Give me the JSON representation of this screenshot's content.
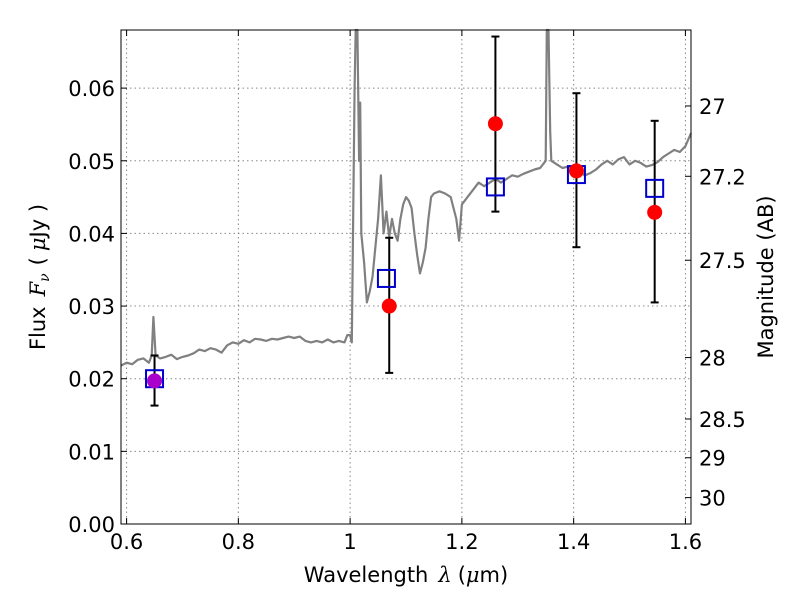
{
  "chart_data": {
    "type": "scatter",
    "title": "",
    "xlabel": "Wavelength",
    "xlabel_symbol": "λ",
    "xlabel_unit_open": "(",
    "xlabel_unit_mu": "μ",
    "xlabel_unit_rest": "m)",
    "ylabel_left": "Flux",
    "ylabel_left_symbol": "F",
    "ylabel_left_sub": "ν",
    "ylabel_left_unit_open": "(",
    "ylabel_left_unit_mu": "μ",
    "ylabel_left_unit_rest": "Jy )",
    "ylabel_right": "Magnitude (AB)",
    "xlim": [
      0.59,
      1.61
    ],
    "ylim": [
      0.0,
      0.068
    ],
    "grid": true,
    "x_ticks": [
      {
        "v": 0.6,
        "label": "0.6"
      },
      {
        "v": 0.8,
        "label": "0.8"
      },
      {
        "v": 1.0,
        "label": "1"
      },
      {
        "v": 1.2,
        "label": "1.2"
      },
      {
        "v": 1.4,
        "label": "1.4"
      },
      {
        "v": 1.6,
        "label": "1.6"
      }
    ],
    "y_ticks": [
      {
        "v": 0.0,
        "label": "0.00"
      },
      {
        "v": 0.01,
        "label": "0.01"
      },
      {
        "v": 0.02,
        "label": "0.02"
      },
      {
        "v": 0.03,
        "label": "0.03"
      },
      {
        "v": 0.04,
        "label": "0.04"
      },
      {
        "v": 0.05,
        "label": "0.05"
      },
      {
        "v": 0.06,
        "label": "0.06"
      }
    ],
    "right_ticks": [
      {
        "mag": 27,
        "label": "27"
      },
      {
        "mag": 27.2,
        "label": "27.2"
      },
      {
        "mag": 27.5,
        "label": "27.5"
      },
      {
        "mag": 28,
        "label": "28"
      },
      {
        "mag": 28.5,
        "label": "28.5"
      },
      {
        "mag": 29,
        "label": "29"
      },
      {
        "mag": 30,
        "label": "30"
      }
    ],
    "spectrum": [
      [
        0.59,
        0.0218
      ],
      [
        0.6,
        0.0222
      ],
      [
        0.61,
        0.022
      ],
      [
        0.62,
        0.0226
      ],
      [
        0.63,
        0.0228
      ],
      [
        0.64,
        0.0222
      ],
      [
        0.645,
        0.0232
      ],
      [
        0.648,
        0.0285
      ],
      [
        0.652,
        0.0232
      ],
      [
        0.66,
        0.0228
      ],
      [
        0.67,
        0.023
      ],
      [
        0.68,
        0.0233
      ],
      [
        0.69,
        0.0227
      ],
      [
        0.7,
        0.023
      ],
      [
        0.71,
        0.0232
      ],
      [
        0.72,
        0.0235
      ],
      [
        0.73,
        0.024
      ],
      [
        0.74,
        0.0238
      ],
      [
        0.75,
        0.0242
      ],
      [
        0.76,
        0.024
      ],
      [
        0.77,
        0.0236
      ],
      [
        0.78,
        0.0246
      ],
      [
        0.79,
        0.025
      ],
      [
        0.8,
        0.0248
      ],
      [
        0.81,
        0.0253
      ],
      [
        0.82,
        0.025
      ],
      [
        0.83,
        0.0255
      ],
      [
        0.84,
        0.0254
      ],
      [
        0.85,
        0.0252
      ],
      [
        0.86,
        0.0255
      ],
      [
        0.87,
        0.0254
      ],
      [
        0.88,
        0.0256
      ],
      [
        0.89,
        0.0258
      ],
      [
        0.9,
        0.0256
      ],
      [
        0.91,
        0.0258
      ],
      [
        0.92,
        0.0252
      ],
      [
        0.93,
        0.025
      ],
      [
        0.94,
        0.0252
      ],
      [
        0.95,
        0.025
      ],
      [
        0.96,
        0.0254
      ],
      [
        0.97,
        0.025
      ],
      [
        0.98,
        0.0252
      ],
      [
        0.99,
        0.025
      ],
      [
        0.995,
        0.026
      ],
      [
        1.0,
        0.026
      ],
      [
        1.003,
        0.025
      ],
      [
        1.008,
        0.06
      ],
      [
        1.01,
        0.07
      ],
      [
        1.013,
        0.07
      ],
      [
        1.016,
        0.05
      ],
      [
        1.018,
        0.058
      ],
      [
        1.02,
        0.04
      ],
      [
        1.025,
        0.036
      ],
      [
        1.03,
        0.0305
      ],
      [
        1.035,
        0.032
      ],
      [
        1.04,
        0.034
      ],
      [
        1.045,
        0.038
      ],
      [
        1.05,
        0.042
      ],
      [
        1.055,
        0.048
      ],
      [
        1.06,
        0.04
      ],
      [
        1.065,
        0.043
      ],
      [
        1.07,
        0.0395
      ],
      [
        1.075,
        0.042
      ],
      [
        1.08,
        0.04
      ],
      [
        1.085,
        0.039
      ],
      [
        1.09,
        0.042
      ],
      [
        1.095,
        0.044
      ],
      [
        1.1,
        0.045
      ],
      [
        1.105,
        0.0445
      ],
      [
        1.11,
        0.0435
      ],
      [
        1.115,
        0.04
      ],
      [
        1.12,
        0.037
      ],
      [
        1.125,
        0.0345
      ],
      [
        1.13,
        0.036
      ],
      [
        1.135,
        0.038
      ],
      [
        1.14,
        0.042
      ],
      [
        1.145,
        0.045
      ],
      [
        1.15,
        0.0455
      ],
      [
        1.16,
        0.0458
      ],
      [
        1.17,
        0.0455
      ],
      [
        1.18,
        0.045
      ],
      [
        1.19,
        0.042
      ],
      [
        1.195,
        0.039
      ],
      [
        1.2,
        0.044
      ],
      [
        1.21,
        0.045
      ],
      [
        1.22,
        0.046
      ],
      [
        1.23,
        0.047
      ],
      [
        1.24,
        0.0465
      ],
      [
        1.25,
        0.047
      ],
      [
        1.26,
        0.0475
      ],
      [
        1.27,
        0.047
      ],
      [
        1.28,
        0.0475
      ],
      [
        1.29,
        0.048
      ],
      [
        1.3,
        0.0478
      ],
      [
        1.31,
        0.0482
      ],
      [
        1.32,
        0.0485
      ],
      [
        1.33,
        0.0488
      ],
      [
        1.34,
        0.049
      ],
      [
        1.345,
        0.0495
      ],
      [
        1.35,
        0.05
      ],
      [
        1.352,
        0.07
      ],
      [
        1.355,
        0.07
      ],
      [
        1.358,
        0.054
      ],
      [
        1.36,
        0.05
      ],
      [
        1.37,
        0.0495
      ],
      [
        1.38,
        0.049
      ],
      [
        1.39,
        0.0492
      ],
      [
        1.4,
        0.0488
      ],
      [
        1.41,
        0.0485
      ],
      [
        1.42,
        0.048
      ],
      [
        1.43,
        0.0483
      ],
      [
        1.44,
        0.0488
      ],
      [
        1.45,
        0.0495
      ],
      [
        1.46,
        0.05
      ],
      [
        1.47,
        0.0495
      ],
      [
        1.48,
        0.0502
      ],
      [
        1.49,
        0.0505
      ],
      [
        1.5,
        0.0495
      ],
      [
        1.51,
        0.05
      ],
      [
        1.52,
        0.0497
      ],
      [
        1.53,
        0.0492
      ],
      [
        1.54,
        0.0494
      ],
      [
        1.55,
        0.0498
      ],
      [
        1.56,
        0.0505
      ],
      [
        1.57,
        0.051
      ],
      [
        1.58,
        0.0515
      ],
      [
        1.59,
        0.0512
      ],
      [
        1.6,
        0.052
      ],
      [
        1.61,
        0.0538
      ]
    ],
    "observed_points": [
      {
        "x": 0.65,
        "y": 0.0197,
        "yerr_low": 0.0163,
        "yerr_high": 0.0232
      },
      {
        "x": 1.07,
        "y": 0.03,
        "yerr_low": 0.0208,
        "yerr_high": 0.0394
      },
      {
        "x": 1.26,
        "y": 0.0551,
        "yerr_low": 0.043,
        "yerr_high": 0.0671
      },
      {
        "x": 1.405,
        "y": 0.0486,
        "yerr_low": 0.0381,
        "yerr_high": 0.0593
      },
      {
        "x": 1.545,
        "y": 0.0429,
        "yerr_low": 0.0305,
        "yerr_high": 0.0555
      }
    ],
    "model_points": [
      {
        "x": 0.65,
        "y": 0.02
      },
      {
        "x": 1.065,
        "y": 0.0338
      },
      {
        "x": 1.26,
        "y": 0.0464
      },
      {
        "x": 1.405,
        "y": 0.0481
      },
      {
        "x": 1.545,
        "y": 0.0462
      }
    ],
    "colors": {
      "spectrum": "#808080",
      "observed": "#ff0000",
      "model": "#0000cc",
      "overlap": "#aa00cc",
      "errorbar": "#000000",
      "grid": "#888888"
    }
  }
}
